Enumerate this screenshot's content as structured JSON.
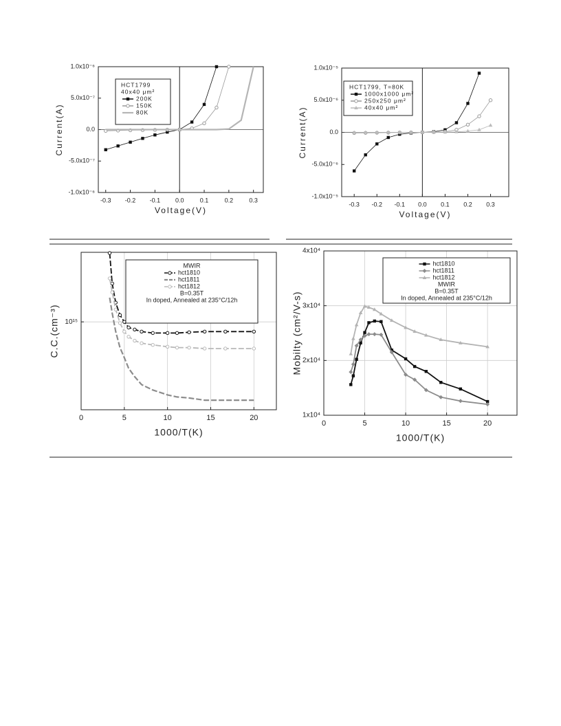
{
  "chart_data": [
    {
      "type": "line",
      "x_label": "Voltage(V)",
      "y_label": "Current(A)",
      "legend_head": [
        "HCT1799",
        "40x40 μm²"
      ],
      "legend_tail": [],
      "zero_lines": true,
      "grid": false,
      "log_y": false,
      "x": [
        -0.3,
        -0.25,
        -0.2,
        -0.15,
        -0.1,
        -0.05,
        0,
        0.05,
        0.1,
        0.15,
        0.2,
        0.25,
        0.3
      ],
      "series": [
        {
          "name": "200K",
          "color": "#111111",
          "marker": "square",
          "dashed": false,
          "values": [
            -3.2e-07,
            -2.6e-07,
            -2e-07,
            -1.4e-07,
            -8.5e-08,
            -4e-08,
            0,
            1.2e-07,
            4e-07,
            1e-06,
            null,
            null,
            null
          ]
        },
        {
          "name": "150K",
          "color": "#999999",
          "marker": "circle",
          "dashed": false,
          "values": [
            -2e-08,
            -1.5e-08,
            -1e-08,
            -8e-09,
            -5e-09,
            -2e-09,
            0,
            2e-08,
            1e-07,
            3.5e-07,
            1e-06,
            null,
            null
          ]
        },
        {
          "name": "80K",
          "color": "#b5b5b5",
          "marker": "none",
          "dashed": false,
          "values": [
            0,
            0,
            0,
            0,
            0,
            0,
            0,
            0,
            0,
            0,
            1e-08,
            1.5e-07,
            1e-06
          ]
        }
      ],
      "xlim": [
        -0.33,
        0.34
      ],
      "xticks": [
        -0.3,
        -0.2,
        -0.1,
        {
          "value": 0,
          "label": "0.0"
        },
        0.1,
        0.2,
        0.3
      ],
      "ylim": [
        -1e-06,
        1e-06
      ],
      "yticks": [
        {
          "value": -1e-06,
          "label": "-1.0x10⁻⁶"
        },
        {
          "value": -5e-07,
          "label": "-5.0x10⁻⁷"
        },
        {
          "value": 0,
          "label": "0.0"
        },
        {
          "value": 5e-07,
          "label": "5.0x10⁻⁷"
        },
        {
          "value": 1e-06,
          "label": "1.0x10⁻⁶"
        }
      ]
    },
    {
      "type": "line",
      "x_label": "Voltage(V)",
      "y_label": "Current(A)",
      "legend_head": [
        "HCT1799, T=80K"
      ],
      "legend_tail": [],
      "zero_lines": true,
      "grid": false,
      "log_y": false,
      "x": [
        -0.3,
        -0.25,
        -0.2,
        -0.15,
        -0.1,
        -0.05,
        0,
        0.05,
        0.1,
        0.15,
        0.2,
        0.25,
        0.3
      ],
      "series": [
        {
          "name": "1000x1000 μm²",
          "color": "#111111",
          "marker": "square",
          "dashed": false,
          "values": [
            -6e-06,
            -3.5e-06,
            -1.8e-06,
            -8e-07,
            -3e-07,
            -1e-07,
            0,
            1e-07,
            4e-07,
            1.5e-06,
            4.5e-06,
            9.2e-06,
            null
          ]
        },
        {
          "name": "250x250 μm²",
          "color": "#999999",
          "marker": "circle",
          "dashed": false,
          "values": [
            -1e-07,
            -8e-08,
            -6e-08,
            -4e-08,
            -2e-08,
            -1e-08,
            0,
            3e-08,
            1e-07,
            4e-07,
            1.2e-06,
            2.5e-06,
            5e-06
          ]
        },
        {
          "name": "40x40 μm²",
          "color": "#bbbbbb",
          "marker": "triangle",
          "dashed": false,
          "values": [
            -1e-08,
            -8e-09,
            -6e-09,
            -4e-09,
            -2e-09,
            -1e-09,
            0,
            1e-08,
            3e-08,
            8e-08,
            2e-07,
            4e-07,
            1.1e-06
          ]
        }
      ],
      "xlim": [
        -0.355,
        0.38
      ],
      "xticks": [
        -0.3,
        -0.2,
        -0.1,
        {
          "value": 0,
          "label": "0.0"
        },
        0.1,
        0.2,
        0.3
      ],
      "ylim": [
        -1e-05,
        1e-05
      ],
      "yticks": [
        {
          "value": -1e-05,
          "label": "-1.0x10⁻⁵"
        },
        {
          "value": -5e-06,
          "label": "-5.0x10⁻⁶"
        },
        {
          "value": 0,
          "label": "0.0"
        },
        {
          "value": 5e-06,
          "label": "5.0x10⁻⁶"
        },
        {
          "value": 1e-05,
          "label": "1.0x10⁻⁵"
        }
      ]
    },
    {
      "type": "line",
      "x_label": "1000/T(K)",
      "y_label": "C.C.(cm⁻³)",
      "legend_head": [
        "MWIR"
      ],
      "legend_tail": [
        "B=0.35T",
        "In doped, Annealed at 235°C/12h"
      ],
      "zero_lines": false,
      "grid": true,
      "log_y": true,
      "x": [
        3.3,
        3.6,
        4,
        4.5,
        5,
        5.5,
        6.2,
        7,
        8.3,
        10,
        11.1,
        12.5,
        14.3,
        16.7,
        20
      ],
      "series": [
        {
          "name": "hct1810",
          "color": "#111111",
          "marker": "circle",
          "dashed": true,
          "values": [
            3160000000000000.0,
            1900000000000000.0,
            1380000000000000.0,
            1120000000000000.0,
            1000000000000000.0,
            910000000000000.0,
            880000000000000.0,
            850000000000000.0,
            830000000000000.0,
            830000000000000.0,
            830000000000000.0,
            840000000000000.0,
            850000000000000.0,
            850000000000000.0,
            850000000000000.0
          ]
        },
        {
          "name": "hct1811",
          "color": "#8c8c8c",
          "marker": "none",
          "dashed": true,
          "values": [
            1500000000000000.0,
            1160000000000000.0,
            850000000000000.0,
            650000000000000.0,
            550000000000000.0,
            460000000000000.0,
            400000000000000.0,
            350000000000000.0,
            320000000000000.0,
            295000000000000.0,
            285000000000000.0,
            280000000000000.0,
            270000000000000.0,
            270000000000000.0,
            270000000000000.0
          ]
        },
        {
          "name": "hct1812",
          "color": "#b8b8b8",
          "marker": "circle",
          "dashed": true,
          "values": [
            2070000000000000.0,
            1640000000000000.0,
            1230000000000000.0,
            980000000000000.0,
            850000000000000.0,
            780000000000000.0,
            730000000000000.0,
            700000000000000.0,
            680000000000000.0,
            660000000000000.0,
            650000000000000.0,
            650000000000000.0,
            640000000000000.0,
            640000000000000.0,
            640000000000000.0
          ]
        }
      ],
      "xlim": [
        0,
        22.6
      ],
      "xticks": [
        0,
        5,
        10,
        15,
        20
      ],
      "ylim": [
        230000000000000.0,
        3200000000000000.0
      ],
      "yticks": [
        {
          "value": 1000000000000000.0,
          "label": "10¹⁵"
        }
      ]
    },
    {
      "type": "line",
      "x_label": "1000/T(K)",
      "y_label": "Mobilty (cm²/V-s)",
      "legend_head": [],
      "legend_tail": [
        "MWIR",
        "B=0.35T",
        "In doped, Annealed at 235°C/12h"
      ],
      "zero_lines": false,
      "grid": true,
      "log_y": false,
      "x": [
        3.3,
        3.6,
        4,
        4.5,
        5,
        5.5,
        6.2,
        7,
        8.3,
        10,
        11.1,
        12.5,
        14.3,
        16.7,
        20
      ],
      "series": [
        {
          "name": "hct1810",
          "color": "#111111",
          "marker": "square",
          "dashed": false,
          "values": [
            15600,
            17200,
            20200,
            23200,
            25100,
            26900,
            27200,
            27100,
            21900,
            20300,
            18900,
            18000,
            16000,
            14800,
            12500
          ]
        },
        {
          "name": "hct1811",
          "color": "#8c8c8c",
          "marker": "diamond",
          "dashed": false,
          "values": [
            17900,
            19300,
            22700,
            23800,
            24500,
            24800,
            24800,
            24700,
            21500,
            17400,
            16500,
            14600,
            13300,
            12600,
            12000
          ]
        },
        {
          "name": "hct1812",
          "color": "#b3b3b3",
          "marker": "triangle",
          "dashed": false,
          "values": [
            21200,
            24000,
            26500,
            28700,
            29900,
            29700,
            29300,
            28500,
            27300,
            26000,
            25300,
            24600,
            23800,
            23200,
            22500
          ]
        }
      ],
      "xlim": [
        0,
        23.6
      ],
      "xticks": [
        0,
        5,
        10,
        15,
        20
      ],
      "ylim": [
        10000,
        40000
      ],
      "yticks": [
        {
          "value": 10000,
          "label": "1x10⁴"
        },
        {
          "value": 20000,
          "label": "2x10⁴"
        },
        {
          "value": 30000,
          "label": "3x10⁴"
        },
        {
          "value": 40000,
          "label": "4x10⁴"
        }
      ]
    }
  ]
}
